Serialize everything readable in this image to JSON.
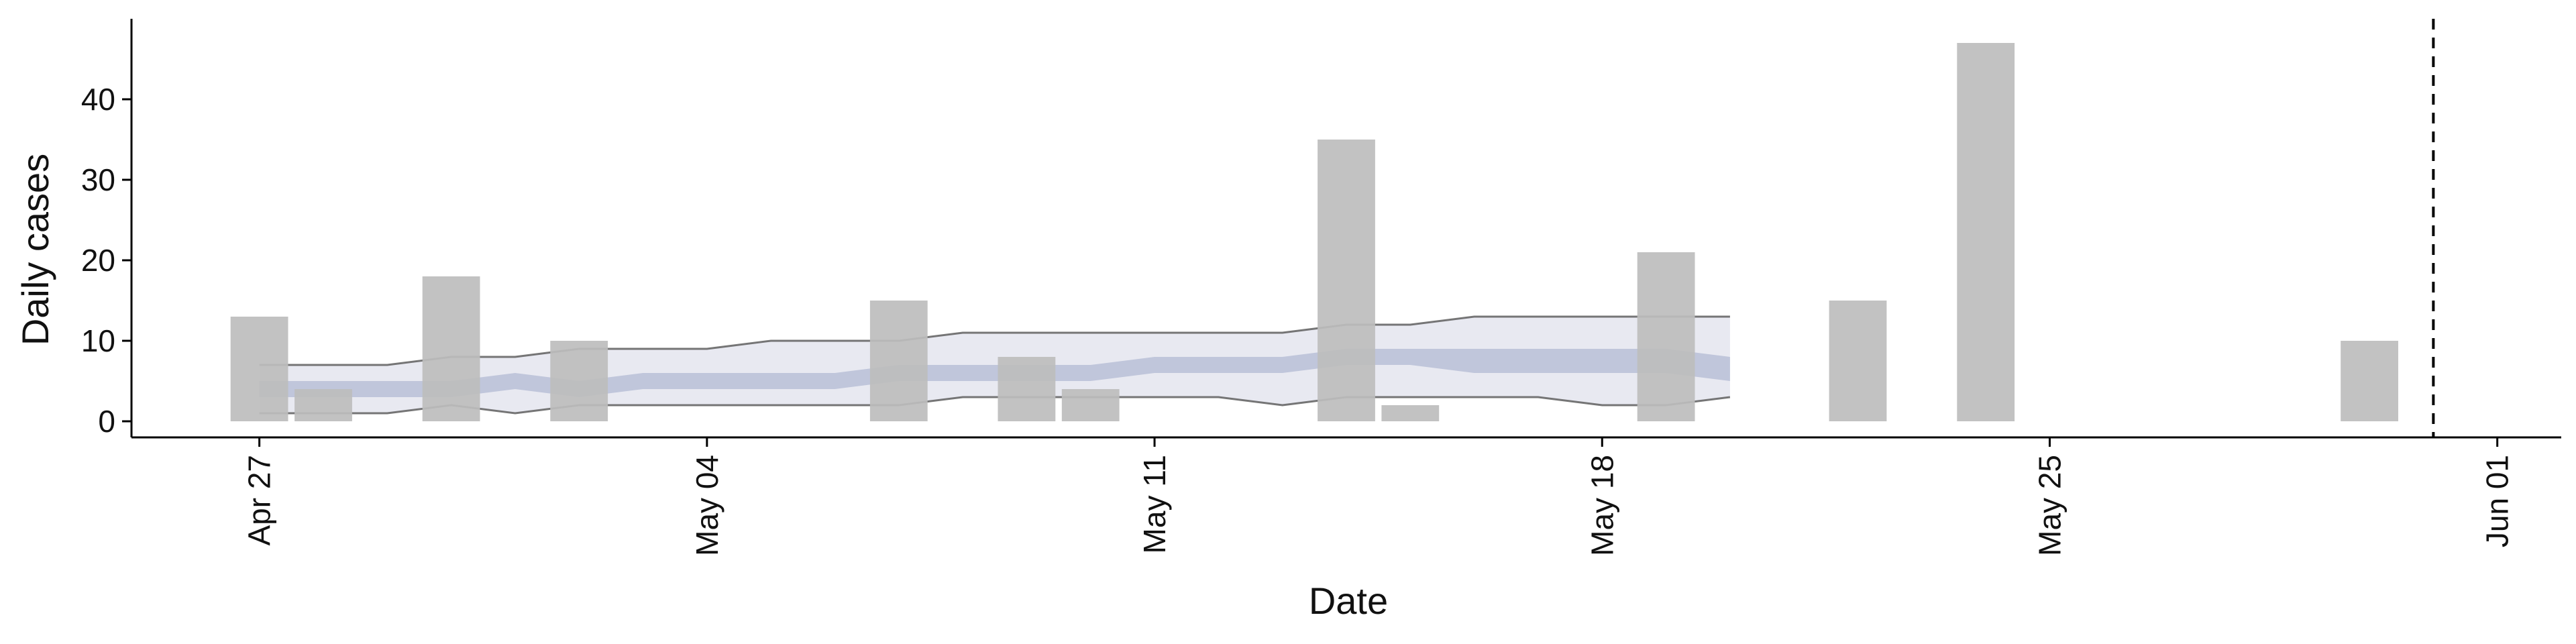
{
  "chart_data": {
    "type": "bar",
    "xlabel": "Date",
    "ylabel": "Daily cases",
    "x_tick_labels": [
      "Apr 27",
      "May 04",
      "May 11",
      "May 18",
      "May 25",
      "Jun 01"
    ],
    "x_tick_dates": [
      "2020-04-27",
      "2020-05-04",
      "2020-05-11",
      "2020-05-18",
      "2020-05-25",
      "2020-06-01"
    ],
    "y_tick_labels": [
      "0",
      "10",
      "20",
      "30",
      "40"
    ],
    "y_ticks": [
      0,
      10,
      20,
      30,
      40
    ],
    "xlim": [
      "2020-04-25",
      "2020-06-02"
    ],
    "ylim": [
      -2,
      50
    ],
    "grid": false,
    "legend": "none",
    "reference_line": {
      "date": "2020-05-31",
      "style": "dashed"
    },
    "bars": {
      "dates": [
        "2020-04-27",
        "2020-04-28",
        "2020-04-30",
        "2020-05-02",
        "2020-05-07",
        "2020-05-09",
        "2020-05-10",
        "2020-05-14",
        "2020-05-15",
        "2020-05-19",
        "2020-05-22",
        "2020-05-24",
        "2020-05-30"
      ],
      "values": [
        13,
        4,
        18,
        10,
        15,
        8,
        4,
        35,
        2,
        21,
        15,
        47,
        10
      ]
    },
    "bands": {
      "dates": [
        "2020-04-27",
        "2020-04-28",
        "2020-04-29",
        "2020-04-30",
        "2020-05-01",
        "2020-05-02",
        "2020-05-03",
        "2020-05-04",
        "2020-05-05",
        "2020-05-06",
        "2020-05-07",
        "2020-05-08",
        "2020-05-09",
        "2020-05-10",
        "2020-05-11",
        "2020-05-12",
        "2020-05-13",
        "2020-05-14",
        "2020-05-15",
        "2020-05-16",
        "2020-05-17",
        "2020-05-18",
        "2020-05-19",
        "2020-05-20"
      ],
      "outer_upper": [
        7,
        7,
        7,
        8,
        8,
        9,
        9,
        9,
        10,
        10,
        10,
        11,
        11,
        11,
        11,
        11,
        11,
        12,
        12,
        13,
        13,
        13,
        13,
        13
      ],
      "outer_lower": [
        1,
        1,
        1,
        2,
        1,
        2,
        2,
        2,
        2,
        2,
        2,
        3,
        3,
        3,
        3,
        3,
        2,
        3,
        3,
        3,
        3,
        2,
        2,
        3
      ],
      "inner_upper": [
        5,
        5,
        5,
        5,
        6,
        5,
        6,
        6,
        6,
        6,
        7,
        7,
        7,
        7,
        8,
        8,
        8,
        9,
        9,
        9,
        9,
        9,
        9,
        8
      ],
      "inner_lower": [
        3,
        3,
        3,
        3,
        4,
        3,
        4,
        4,
        4,
        4,
        5,
        5,
        5,
        5,
        6,
        6,
        6,
        7,
        7,
        6,
        6,
        6,
        6,
        5
      ]
    },
    "colors": {
      "bar": "#bdbdbd",
      "outer_band": "#e8e9f1",
      "inner_band": "#b8bfd7",
      "band_edge": "#555555",
      "axis": "#000000"
    }
  }
}
